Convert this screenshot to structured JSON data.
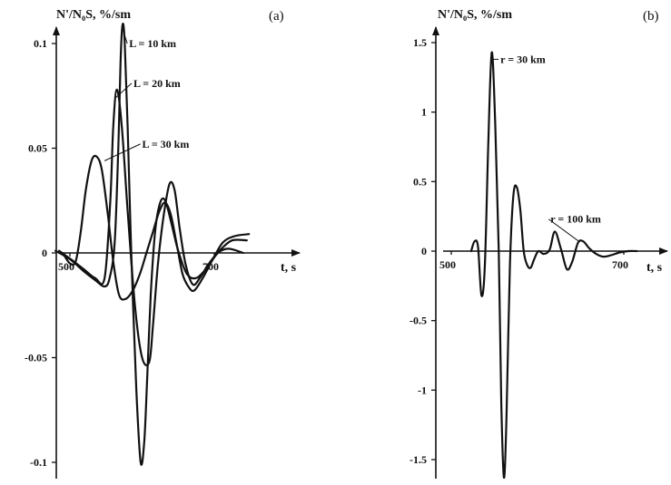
{
  "chart_data": [
    {
      "type": "line",
      "panel_label": "(a)",
      "ylabel": "N'/N₀S, %/sm",
      "xlabel": "t, s",
      "xlim": [
        470,
        750
      ],
      "ylim": [
        -0.105,
        0.115
      ],
      "yticks": [
        {
          "value": 0.1,
          "label": "0.1"
        },
        {
          "value": 0.05,
          "label": "0.05"
        },
        {
          "value": 0,
          "label": "0"
        },
        {
          "value": -0.05,
          "label": "-0.05"
        },
        {
          "value": -0.1,
          "label": "-0.1"
        }
      ],
      "xticks": [
        {
          "value": 500,
          "label": "500"
        },
        {
          "value": 700,
          "label": "700"
        }
      ],
      "series": [
        {
          "name": "L = 10 km",
          "x": [
            480,
            500,
            520,
            535,
            548,
            555,
            562,
            567,
            570,
            573,
            576,
            580,
            585,
            592,
            598,
            603,
            607,
            612,
            618,
            625,
            632,
            640,
            650,
            662,
            675,
            690,
            705,
            720,
            740
          ],
          "y": [
            0.001,
            -0.003,
            -0.009,
            -0.013,
            -0.016,
            -0.012,
            0.005,
            0.05,
            0.09,
            0.109,
            0.1,
            0.06,
            0.0,
            -0.065,
            -0.1,
            -0.09,
            -0.06,
            -0.02,
            0.01,
            0.024,
            0.025,
            0.015,
            0.001,
            -0.01,
            -0.012,
            -0.007,
            0.0,
            0.002,
            0.0
          ]
        },
        {
          "name": "L = 20 km",
          "x": [
            485,
            505,
            520,
            535,
            548,
            556,
            560,
            565,
            572,
            580,
            590,
            600,
            610,
            615,
            622,
            630,
            638,
            645,
            652,
            660,
            670,
            680,
            695,
            710,
            725,
            745
          ],
          "y": [
            0.001,
            -0.004,
            -0.008,
            -0.012,
            -0.012,
            0.025,
            0.06,
            0.078,
            0.06,
            0.02,
            -0.025,
            -0.05,
            -0.052,
            -0.035,
            -0.005,
            0.018,
            0.033,
            0.03,
            0.012,
            -0.005,
            -0.015,
            -0.012,
            -0.004,
            0.002,
            0.006,
            0.006
          ]
        },
        {
          "name": "L = 30 km",
          "x": [
            490,
            500,
            508,
            515,
            522,
            530,
            537,
            544,
            552,
            560,
            568,
            577,
            587,
            597,
            606,
            615,
            624,
            632,
            640,
            648,
            656,
            664,
            672,
            684,
            698,
            712,
            728,
            748
          ],
          "y": [
            0.0,
            -0.005,
            -0.004,
            0.01,
            0.03,
            0.044,
            0.046,
            0.04,
            0.02,
            -0.004,
            -0.02,
            -0.022,
            -0.018,
            -0.01,
            0.0,
            0.01,
            0.02,
            0.024,
            0.018,
            0.004,
            -0.01,
            -0.016,
            -0.018,
            -0.012,
            -0.003,
            0.005,
            0.008,
            0.009
          ]
        }
      ]
    },
    {
      "type": "line",
      "panel_label": "(b)",
      "ylabel": "N'/N₀S, %/sm",
      "xlabel": "t, s",
      "xlim": [
        470,
        750
      ],
      "ylim": [
        -1.68,
        1.5
      ],
      "yticks": [
        {
          "value": 1.5,
          "label": "1.5"
        },
        {
          "value": 1,
          "label": "1"
        },
        {
          "value": 0.5,
          "label": "0.5"
        },
        {
          "value": 0,
          "label": "0"
        },
        {
          "value": -0.5,
          "label": "-0.5"
        },
        {
          "value": -1,
          "label": "-1"
        },
        {
          "value": -1.5,
          "label": "-1.5"
        }
      ],
      "xticks": [
        {
          "value": 500,
          "label": "500"
        },
        {
          "value": 700,
          "label": "700"
        }
      ],
      "series": [
        {
          "name": "r = 30 km",
          "x": [
            523,
            527,
            531,
            535,
            539,
            543,
            547,
            551,
            555,
            558,
            561,
            564,
            568,
            572,
            576,
            580,
            584,
            588,
            592,
            596,
            601,
            607,
            614,
            620,
            627,
            634,
            640,
            647,
            653,
            660,
            668,
            676,
            685,
            695,
            705,
            715
          ],
          "y": [
            0.0,
            0.07,
            0.03,
            -0.32,
            -0.1,
            0.8,
            1.43,
            0.9,
            0.0,
            -1.1,
            -1.63,
            -1.2,
            -0.1,
            0.4,
            0.46,
            0.3,
            0.0,
            -0.1,
            -0.12,
            -0.06,
            0.0,
            -0.02,
            0.01,
            0.14,
            0.02,
            -0.13,
            -0.08,
            0.06,
            0.07,
            0.02,
            -0.02,
            -0.04,
            -0.03,
            -0.01,
            0.0,
            0.0
          ]
        }
      ]
    }
  ],
  "annotations": [
    {
      "text": "L = 10 km",
      "panel": 0,
      "x": 582,
      "y": 0.1,
      "tx": 573,
      "ty": 0.107
    },
    {
      "text": "L = 20 km",
      "panel": 0,
      "x": 588,
      "y": 0.081,
      "tx": 563,
      "ty": 0.074
    },
    {
      "text": "L = 30 km",
      "panel": 0,
      "x": 600,
      "y": 0.052,
      "tx": 548,
      "ty": 0.044
    },
    {
      "text": "r = 30 km",
      "panel": 1,
      "x": 557,
      "y": 1.38,
      "tx": 548,
      "ty": 1.38
    },
    {
      "text": "r = 100 km",
      "panel": 1,
      "x": 615,
      "y": 0.23,
      "tx": 648,
      "ty": 0.07
    }
  ]
}
